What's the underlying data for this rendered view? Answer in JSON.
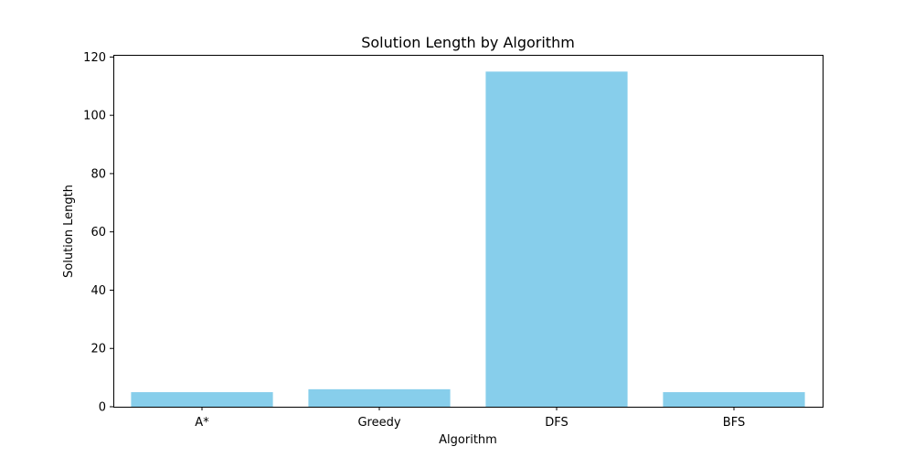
{
  "chart_data": {
    "type": "bar",
    "title": "Solution Length by Algorithm",
    "xlabel": "Algorithm",
    "ylabel": "Solution Length",
    "categories": [
      "A*",
      "Greedy",
      "DFS",
      "BFS"
    ],
    "values": [
      5,
      6,
      115,
      5
    ],
    "ylim": [
      0,
      120.75
    ],
    "yticks": [
      0,
      20,
      40,
      60,
      80,
      100,
      120
    ],
    "bar_color": "#87CEEB",
    "grid": false,
    "legend": "none"
  }
}
